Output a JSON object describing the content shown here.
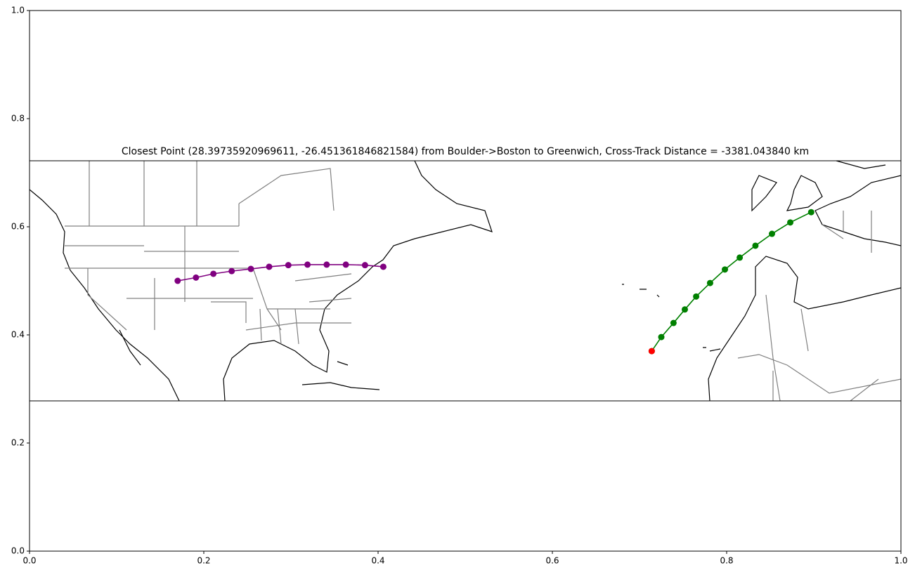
{
  "chart_data": {
    "type": "line",
    "title": "Closest Point (28.39735920969611, -26.451361846821584) from Boulder->Boston to Greenwich, Cross-Track Distance = -3381.043840 km",
    "xlim": [
      0,
      1
    ],
    "ylim": [
      0,
      1
    ],
    "xticks": [
      {
        "value": 0,
        "label": "0.0"
      },
      0.2,
      0.4,
      0.6,
      0.8,
      {
        "value": 1,
        "label": "1.0"
      }
    ],
    "yticks": [
      {
        "value": 0,
        "label": "0.0"
      },
      0.2,
      0.4,
      0.6,
      0.8,
      {
        "value": 1,
        "label": "1.0"
      }
    ],
    "series": [
      {
        "type": "line",
        "color": "#800080",
        "x": [
          0.17,
          0.191,
          0.211,
          0.232,
          0.254,
          0.275,
          0.297,
          0.319,
          0.341,
          0.363,
          0.385,
          0.406
        ],
        "values": [
          0.5,
          0.506,
          0.513,
          0.518,
          0.522,
          0.526,
          0.529,
          0.53,
          0.53,
          0.53,
          0.529,
          0.526
        ]
      },
      {
        "type": "line",
        "color": "#008000",
        "x": [
          0.714,
          0.725,
          0.739,
          0.752,
          0.765,
          0.781,
          0.798,
          0.815,
          0.833,
          0.852,
          0.873,
          0.897
        ],
        "values": [
          0.37,
          0.396,
          0.422,
          0.447,
          0.471,
          0.496,
          0.521,
          0.543,
          0.565,
          0.587,
          0.608,
          0.627
        ]
      },
      {
        "type": "scatter",
        "color": "#ff0000",
        "x": [
          0.714
        ],
        "values": [
          0.37
        ]
      }
    ]
  }
}
